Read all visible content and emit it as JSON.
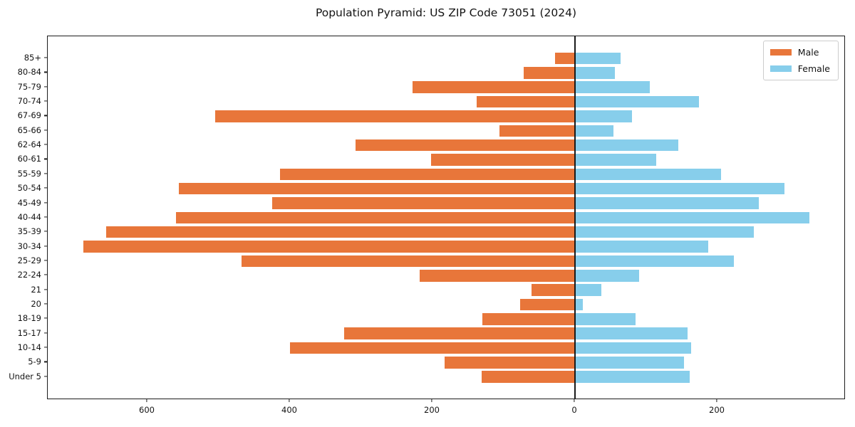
{
  "figure": {
    "background": "#ffffff"
  },
  "chart_data": {
    "type": "bar",
    "subtype": "population-pyramid",
    "title": "Population Pyramid: US ZIP Code 73051 (2024)",
    "orientation": "horizontal",
    "grid": false,
    "zero_line": true,
    "categories_top_to_bottom": [
      "85+",
      "80-84",
      "75-79",
      "70-74",
      "67-69",
      "65-66",
      "62-64",
      "60-61",
      "55-59",
      "50-54",
      "45-49",
      "40-44",
      "35-39",
      "30-34",
      "25-29",
      "22-24",
      "21",
      "20",
      "18-19",
      "15-17",
      "10-14",
      "5-9",
      "Under 5"
    ],
    "series": [
      {
        "name": "Male",
        "color": "#E8763A",
        "direction": "left",
        "values": [
          28,
          72,
          228,
          138,
          505,
          106,
          308,
          202,
          414,
          556,
          425,
          560,
          658,
          690,
          468,
          218,
          61,
          77,
          130,
          324,
          400,
          183,
          131
        ]
      },
      {
        "name": "Female",
        "color": "#87CEEB",
        "direction": "right",
        "values": [
          64,
          56,
          105,
          174,
          80,
          54,
          145,
          114,
          205,
          294,
          258,
          329,
          251,
          187,
          223,
          90,
          37,
          11,
          85,
          158,
          163,
          153,
          161
        ]
      }
    ],
    "x_axis": {
      "xlim": [
        -740,
        380
      ],
      "ticks": [
        {
          "value": -600,
          "label": "600"
        },
        {
          "value": -400,
          "label": "400"
        },
        {
          "value": -200,
          "label": "200"
        },
        {
          "value": 0,
          "label": "0"
        },
        {
          "value": 200,
          "label": "200"
        }
      ]
    },
    "legend": {
      "position": "upper-right",
      "entries": [
        {
          "label": "Male",
          "color": "#E8763A"
        },
        {
          "label": "Female",
          "color": "#87CEEB"
        }
      ]
    }
  }
}
